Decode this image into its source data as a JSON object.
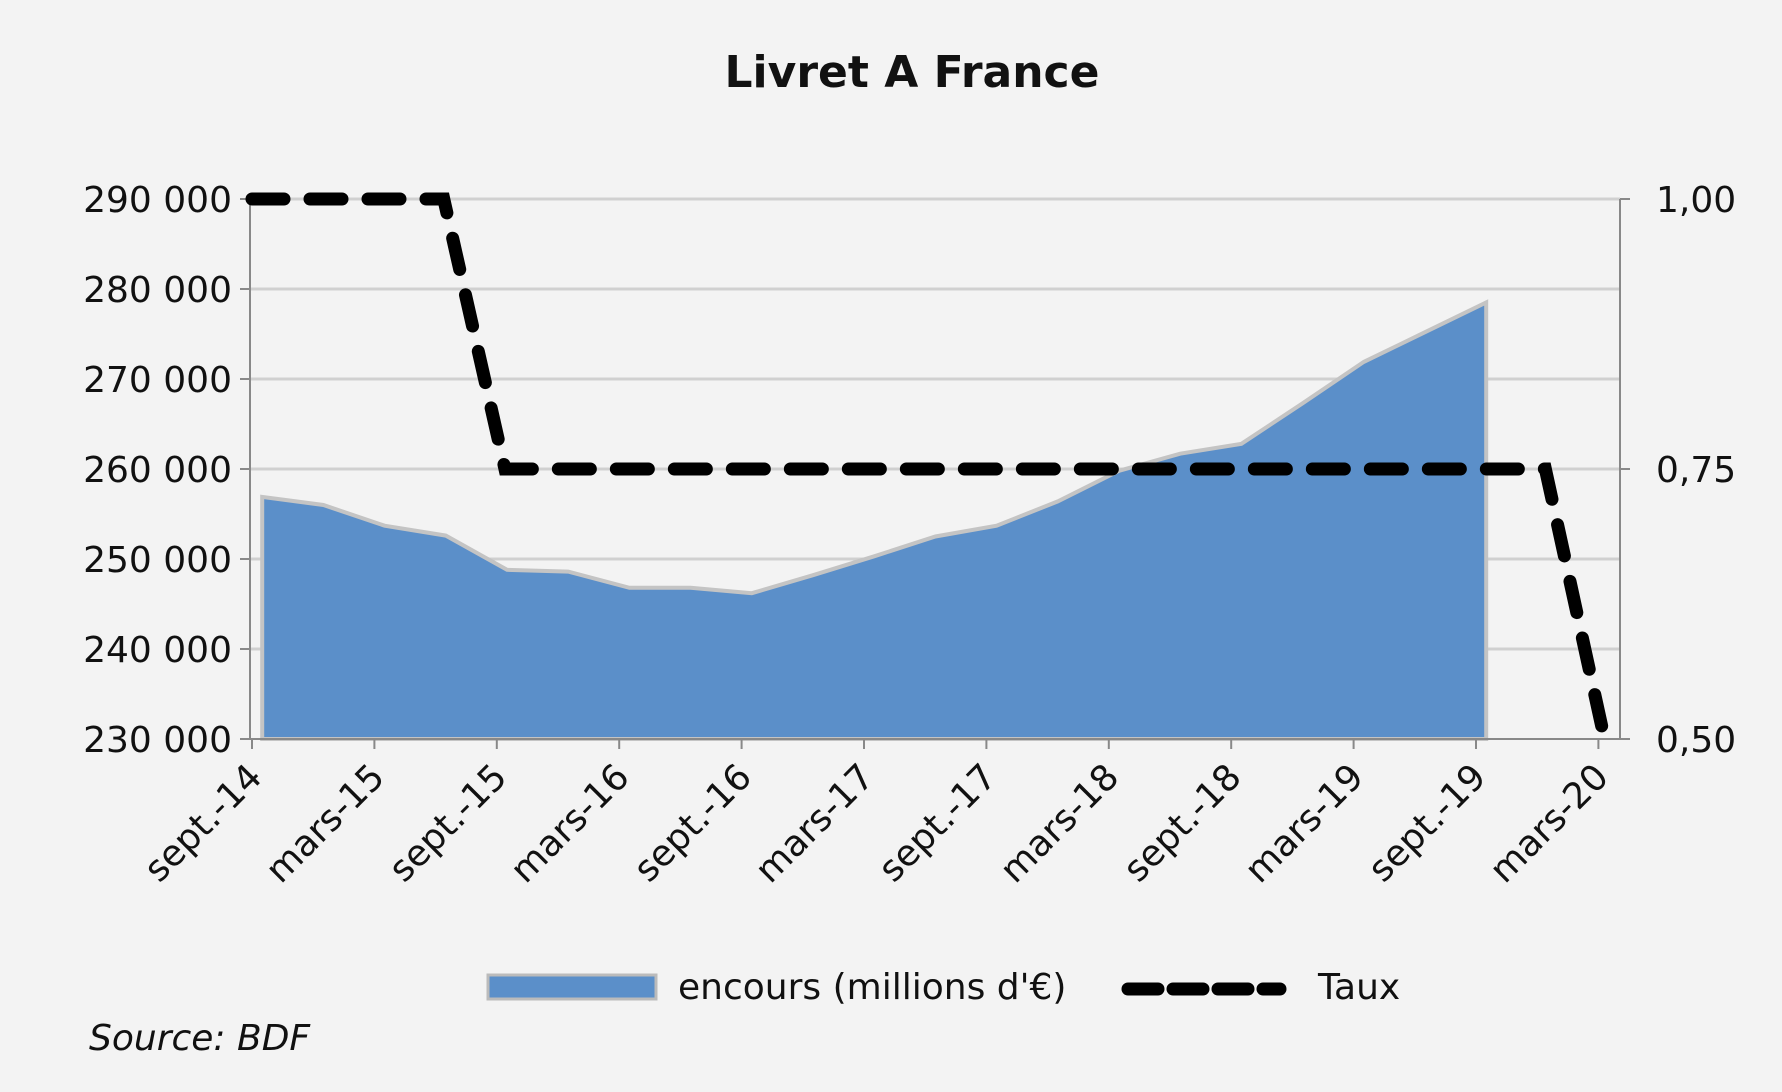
{
  "chart_data": {
    "type": "area",
    "title": "Livret A France",
    "source": "Source: BDF",
    "x_unit": "months since sept.-14",
    "x_ticks": [
      {
        "m": 0,
        "label": "sept.-14"
      },
      {
        "m": 6,
        "label": "mars-15"
      },
      {
        "m": 12,
        "label": "sept.-15"
      },
      {
        "m": 18,
        "label": "mars-16"
      },
      {
        "m": 24,
        "label": "sept.-16"
      },
      {
        "m": 30,
        "label": "mars-17"
      },
      {
        "m": 36,
        "label": "sept.-17"
      },
      {
        "m": 42,
        "label": "mars-18"
      },
      {
        "m": 48,
        "label": "sept.-18"
      },
      {
        "m": 54,
        "label": "mars-19"
      },
      {
        "m": 60,
        "label": "sept.-19"
      },
      {
        "m": 66,
        "label": "mars-20"
      }
    ],
    "y_left": {
      "ylim": [
        230000,
        290000
      ],
      "ticks": [
        290000,
        280000,
        270000,
        260000,
        250000,
        240000,
        230000
      ],
      "tick_labels": [
        "290 000",
        "280 000",
        "270 000",
        "260 000",
        "250 000",
        "240 000",
        "230 000"
      ]
    },
    "y_right": {
      "ylim": [
        0.5,
        1.0
      ],
      "ticks": [
        1.0,
        0.75,
        0.5
      ],
      "tick_labels": [
        "1,00",
        "0,75",
        "0,50"
      ]
    },
    "grid": true,
    "legend_position": "bottom",
    "series": [
      {
        "name": "encours (millions d'€)",
        "type": "area",
        "axis": "left",
        "color": "#5b8fc9",
        "x": [
          0.5,
          3.5,
          6.5,
          9.5,
          12.5,
          15.5,
          18.5,
          21.5,
          24.5,
          27.5,
          30.5,
          33.5,
          36.5,
          39.5,
          42.5,
          45.5,
          48.5,
          51.5,
          54.5,
          57.5,
          60.5
        ],
        "values": [
          256900,
          256000,
          253700,
          252600,
          248800,
          248600,
          246800,
          246800,
          246200,
          248200,
          250300,
          252500,
          253700,
          256400,
          259800,
          261700,
          262800,
          267300,
          271900,
          275200,
          278500
        ]
      },
      {
        "name": "Taux",
        "type": "line",
        "style": "dashed",
        "axis": "right",
        "color": "#000000",
        "x": [
          0,
          9.4,
          12.4,
          63.4,
          66.3
        ],
        "values": [
          1.0,
          1.0,
          0.75,
          0.75,
          0.5
        ]
      }
    ]
  }
}
